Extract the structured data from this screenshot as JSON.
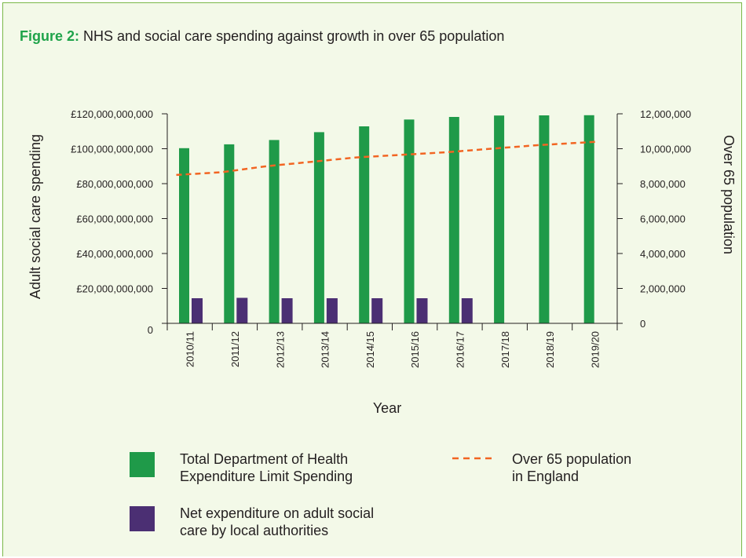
{
  "figure": {
    "label": "Figure 2:",
    "title": "NHS and social care spending against growth in over 65 population"
  },
  "colors": {
    "panel_bg": "#f3f9e8",
    "panel_border": "#7ab848",
    "label_green": "#1fa34a",
    "bar_green": "#1f9a49",
    "bar_purple": "#4b2f73",
    "line_orange": "#f26522"
  },
  "chart_data": {
    "type": "bar",
    "title": "NHS and social care spending against growth in over 65 population",
    "xlabel": "Year",
    "ylabel": "Adult social care spending",
    "y2label": "Over 65 population",
    "categories": [
      "2010/11",
      "2011/12",
      "2012/13",
      "2013/14",
      "2014/15",
      "2015/16",
      "2016/17",
      "2017/18",
      "2018/19",
      "2019/20"
    ],
    "ylim": [
      0,
      120000000000
    ],
    "y2lim": [
      0,
      12000000
    ],
    "yticks": [
      0,
      20000000000,
      40000000000,
      60000000000,
      80000000000,
      100000000000,
      120000000000
    ],
    "ytick_labels": [
      "0",
      "£20,000,000,000",
      "£40,000,000,000",
      "£60,000,000,000",
      "£80,000,000,000",
      "£100,000,000,000",
      "£120,000,000,000"
    ],
    "y2ticks": [
      0,
      2000000,
      4000000,
      6000000,
      8000000,
      10000000,
      12000000
    ],
    "y2tick_labels": [
      "0",
      "2,000,000",
      "4,000,000",
      "6,000,000",
      "8,000,000",
      "10,000,000",
      "12,000,000"
    ],
    "series": [
      {
        "name": "Total Department of Health Expenditure Limit Spending",
        "type": "bar",
        "axis": "left",
        "color": "#1f9a49",
        "values": [
          100300000000,
          102500000000,
          105000000000,
          109500000000,
          112800000000,
          116700000000,
          118200000000,
          119000000000,
          119100000000,
          119200000000
        ]
      },
      {
        "name": "Net expenditure on adult social care by local authorities",
        "type": "bar",
        "axis": "left",
        "color": "#4b2f73",
        "values": [
          14400000000,
          14600000000,
          14400000000,
          14400000000,
          14400000000,
          14400000000,
          14400000000,
          null,
          null,
          null
        ]
      },
      {
        "name": "Over 65 population in England",
        "type": "line",
        "style": "dashed",
        "axis": "right",
        "color": "#f26522",
        "values": [
          8500000,
          8650000,
          9000000,
          9250000,
          9500000,
          9650000,
          9800000,
          10000000,
          10200000,
          10400000
        ]
      }
    ],
    "legend": {
      "placement": "bottom",
      "items": [
        {
          "lines": [
            "Total Department of Health",
            "Expenditure Limit Spending"
          ],
          "series": 0
        },
        {
          "lines": [
            "Net expenditure on adult social",
            "care by local authorities"
          ],
          "series": 1
        },
        {
          "lines": [
            "Over 65 population",
            "in England"
          ],
          "series": 2
        }
      ]
    },
    "grid": false
  }
}
